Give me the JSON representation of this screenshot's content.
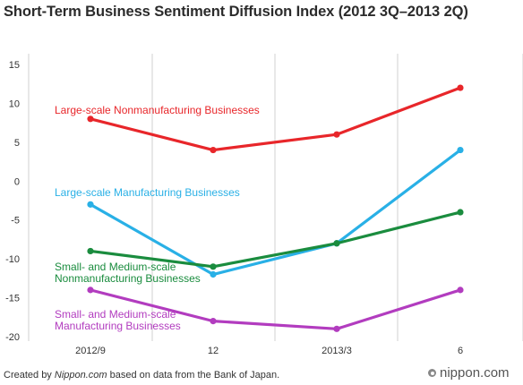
{
  "chart_data": {
    "type": "line",
    "title": "Short-Term Business Sentiment Diffusion Index (2012 3Q–2013 2Q)",
    "categories": [
      "2012/9",
      "12",
      "2013/3",
      "6"
    ],
    "ylim": [
      -20,
      15
    ],
    "yticks": [
      15,
      10,
      5,
      0,
      -5,
      -10,
      -15,
      -20
    ],
    "grid": "vertical",
    "series": [
      {
        "name": "Large-scale Nonmanufacturing Businesses",
        "values": [
          8,
          4,
          6,
          12
        ],
        "color": "#e8262a"
      },
      {
        "name": "Large-scale Manufacturing Businesses",
        "values": [
          -3,
          -12,
          -8,
          4
        ],
        "color": "#29b0e6"
      },
      {
        "name": "Small- and Medium-scale Nonmanufacturing Businesses",
        "label_lines": [
          "Small- and Medium-scale",
          "Nonmanufacturing Businesses"
        ],
        "values": [
          -9,
          -11,
          -8,
          -4
        ],
        "color": "#1a8c3e"
      },
      {
        "name": "Small- and Medium-scale Manufacturing Businesses",
        "label_lines": [
          "Small- and Medium-scale",
          "Manufacturing Businesses"
        ],
        "values": [
          -14,
          -18,
          -19,
          -14
        ],
        "color": "#b23cbf"
      }
    ]
  },
  "footer": {
    "prefix": "Created by ",
    "source": "Nippon.com",
    "suffix": " based on data from the Bank of Japan."
  },
  "logo": {
    "text": "nippon.com"
  }
}
